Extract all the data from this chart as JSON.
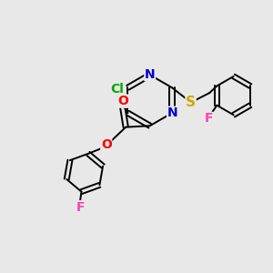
{
  "bg_color": "#e8e8e8",
  "figsize": [
    3.0,
    3.0
  ],
  "dpi": 100,
  "atom_colors": {
    "N": "#0000cc",
    "O": "#ff0000",
    "S": "#ccaa00",
    "Cl": "#00aa00",
    "F1": "#ff44aa",
    "F2": "#ff44aa"
  },
  "lw": 1.4,
  "font_size": 9.5
}
